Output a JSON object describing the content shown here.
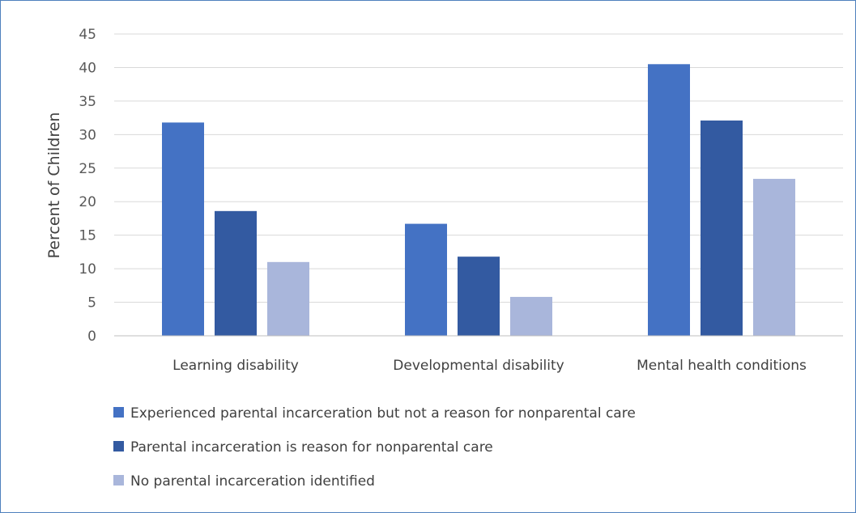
{
  "chart_data": {
    "type": "bar",
    "title": "",
    "xlabel": "",
    "ylabel": "Percent of Children",
    "ylim": [
      0,
      45
    ],
    "yticks": [
      0,
      5,
      10,
      15,
      20,
      25,
      30,
      35,
      40,
      45
    ],
    "grid": true,
    "legend_position": "bottom",
    "categories": [
      "Learning disability",
      "Developmental disability",
      "Mental health conditions"
    ],
    "series": [
      {
        "name": "Experienced parental incarceration but not a reason for nonparental care",
        "color": "#4472c4",
        "values": [
          31.8,
          16.7,
          40.5
        ]
      },
      {
        "name": "Parental incarceration is reason for nonparental care",
        "color": "#335aa1",
        "values": [
          18.6,
          11.8,
          32.1
        ]
      },
      {
        "name": "No parental incarceration identified",
        "color": "#a9b6db",
        "values": [
          11.0,
          5.8,
          23.4
        ]
      }
    ]
  }
}
